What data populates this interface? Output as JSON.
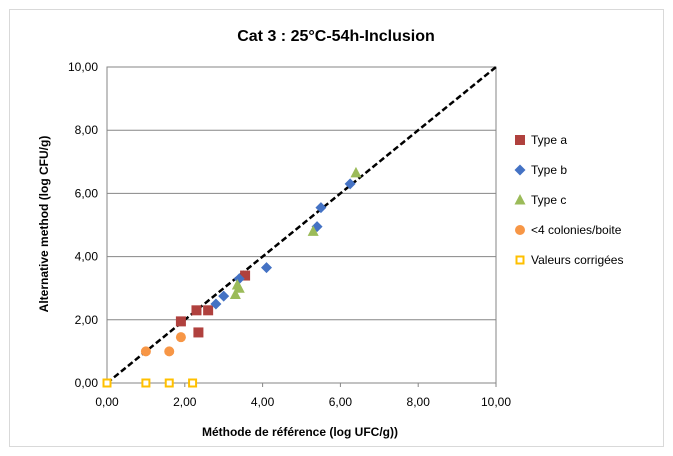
{
  "chart_data": {
    "type": "scatter",
    "title": "Cat 3 : 25°C-54h-Inclusion",
    "xlabel": "Méthode de référence (log UFC/g))",
    "ylabel": "Alternative method (log CFU/g)",
    "xlim": [
      0,
      10
    ],
    "ylim": [
      0,
      10
    ],
    "x_ticks": [
      "0,00",
      "2,00",
      "4,00",
      "6,00",
      "8,00",
      "10,00"
    ],
    "y_ticks": [
      "0,00",
      "2,00",
      "4,00",
      "6,00",
      "8,00",
      "10,00"
    ],
    "grid": "horizontal",
    "legend_position": "right",
    "reference_line": {
      "style": "dashed",
      "color": "#000000",
      "from": [
        0,
        0
      ],
      "to": [
        10,
        10
      ]
    },
    "series": [
      {
        "name": "Type a",
        "marker": "square",
        "color": "#b0413e",
        "points": [
          [
            1.9,
            1.95
          ],
          [
            2.3,
            2.3
          ],
          [
            2.35,
            1.6
          ],
          [
            2.6,
            2.3
          ],
          [
            3.55,
            3.4
          ]
        ]
      },
      {
        "name": "Type b",
        "marker": "diamond",
        "color": "#4472c4",
        "points": [
          [
            2.8,
            2.5
          ],
          [
            3.0,
            2.75
          ],
          [
            3.4,
            3.3
          ],
          [
            4.1,
            3.65
          ],
          [
            5.4,
            4.95
          ],
          [
            5.5,
            5.55
          ],
          [
            6.25,
            6.3
          ]
        ]
      },
      {
        "name": "Type c",
        "marker": "triangle",
        "color": "#9bbb59",
        "points": [
          [
            3.3,
            2.8
          ],
          [
            3.35,
            3.1
          ],
          [
            3.4,
            3.0
          ],
          [
            5.3,
            4.8
          ],
          [
            6.4,
            6.65
          ]
        ]
      },
      {
        "name": "<4 colonies/boite",
        "marker": "circle",
        "color": "#f79646",
        "points": [
          [
            1.0,
            1.0
          ],
          [
            1.6,
            1.0
          ],
          [
            1.9,
            1.45
          ]
        ]
      },
      {
        "name": "Valeurs corrigées",
        "marker": "square-open",
        "color": "#ffc000",
        "points": [
          [
            0.0,
            0.0
          ],
          [
            1.0,
            0.0
          ],
          [
            1.6,
            0.0
          ],
          [
            2.2,
            0.0
          ]
        ]
      }
    ]
  }
}
